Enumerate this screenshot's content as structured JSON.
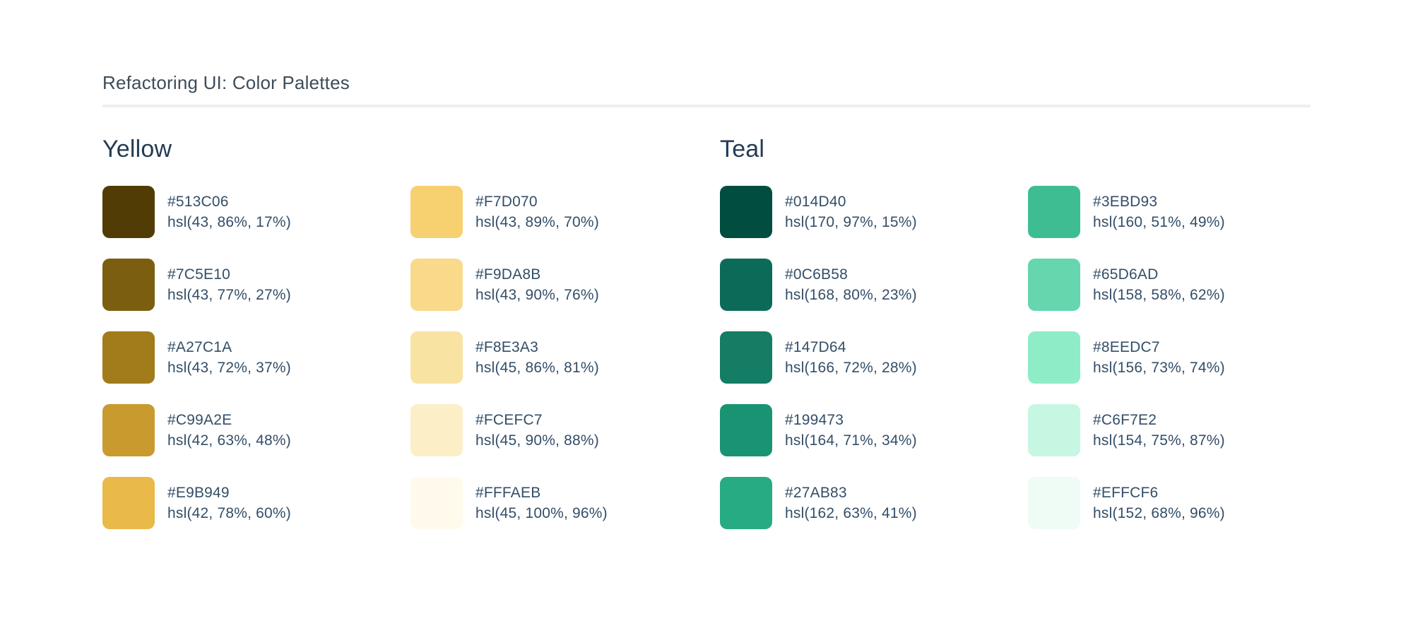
{
  "page": {
    "title": "Refactoring UI: Color Palettes"
  },
  "colors": {
    "background": "#FFFFFF",
    "title": "#3E4C59",
    "heading": "#243B53",
    "text": "#334E68",
    "divider": "#ECEEF1"
  },
  "palettes": [
    {
      "name": "Yellow",
      "columns": [
        [
          {
            "hex": "#513C06",
            "hsl": "hsl(43, 86%, 17%)"
          },
          {
            "hex": "#7C5E10",
            "hsl": "hsl(43, 77%, 27%)"
          },
          {
            "hex": "#A27C1A",
            "hsl": "hsl(43, 72%, 37%)"
          },
          {
            "hex": "#C99A2E",
            "hsl": "hsl(42, 63%, 48%)"
          },
          {
            "hex": "#E9B949",
            "hsl": "hsl(42, 78%, 60%)"
          }
        ],
        [
          {
            "hex": "#F7D070",
            "hsl": "hsl(43, 89%, 70%)"
          },
          {
            "hex": "#F9DA8B",
            "hsl": "hsl(43, 90%, 76%)"
          },
          {
            "hex": "#F8E3A3",
            "hsl": "hsl(45, 86%, 81%)"
          },
          {
            "hex": "#FCEFC7",
            "hsl": "hsl(45, 90%, 88%)"
          },
          {
            "hex": "#FFFAEB",
            "hsl": "hsl(45, 100%, 96%)"
          }
        ]
      ]
    },
    {
      "name": "Teal",
      "columns": [
        [
          {
            "hex": "#014D40",
            "hsl": "hsl(170, 97%, 15%)"
          },
          {
            "hex": "#0C6B58",
            "hsl": "hsl(168, 80%, 23%)"
          },
          {
            "hex": "#147D64",
            "hsl": "hsl(166, 72%, 28%)"
          },
          {
            "hex": "#199473",
            "hsl": "hsl(164, 71%, 34%)"
          },
          {
            "hex": "#27AB83",
            "hsl": "hsl(162, 63%, 41%)"
          }
        ],
        [
          {
            "hex": "#3EBD93",
            "hsl": "hsl(160, 51%, 49%)"
          },
          {
            "hex": "#65D6AD",
            "hsl": "hsl(158, 58%, 62%)"
          },
          {
            "hex": "#8EEDC7",
            "hsl": "hsl(156, 73%, 74%)"
          },
          {
            "hex": "#C6F7E2",
            "hsl": "hsl(154, 75%, 87%)"
          },
          {
            "hex": "#EFFCF6",
            "hsl": "hsl(152, 68%, 96%)"
          }
        ]
      ]
    }
  ]
}
